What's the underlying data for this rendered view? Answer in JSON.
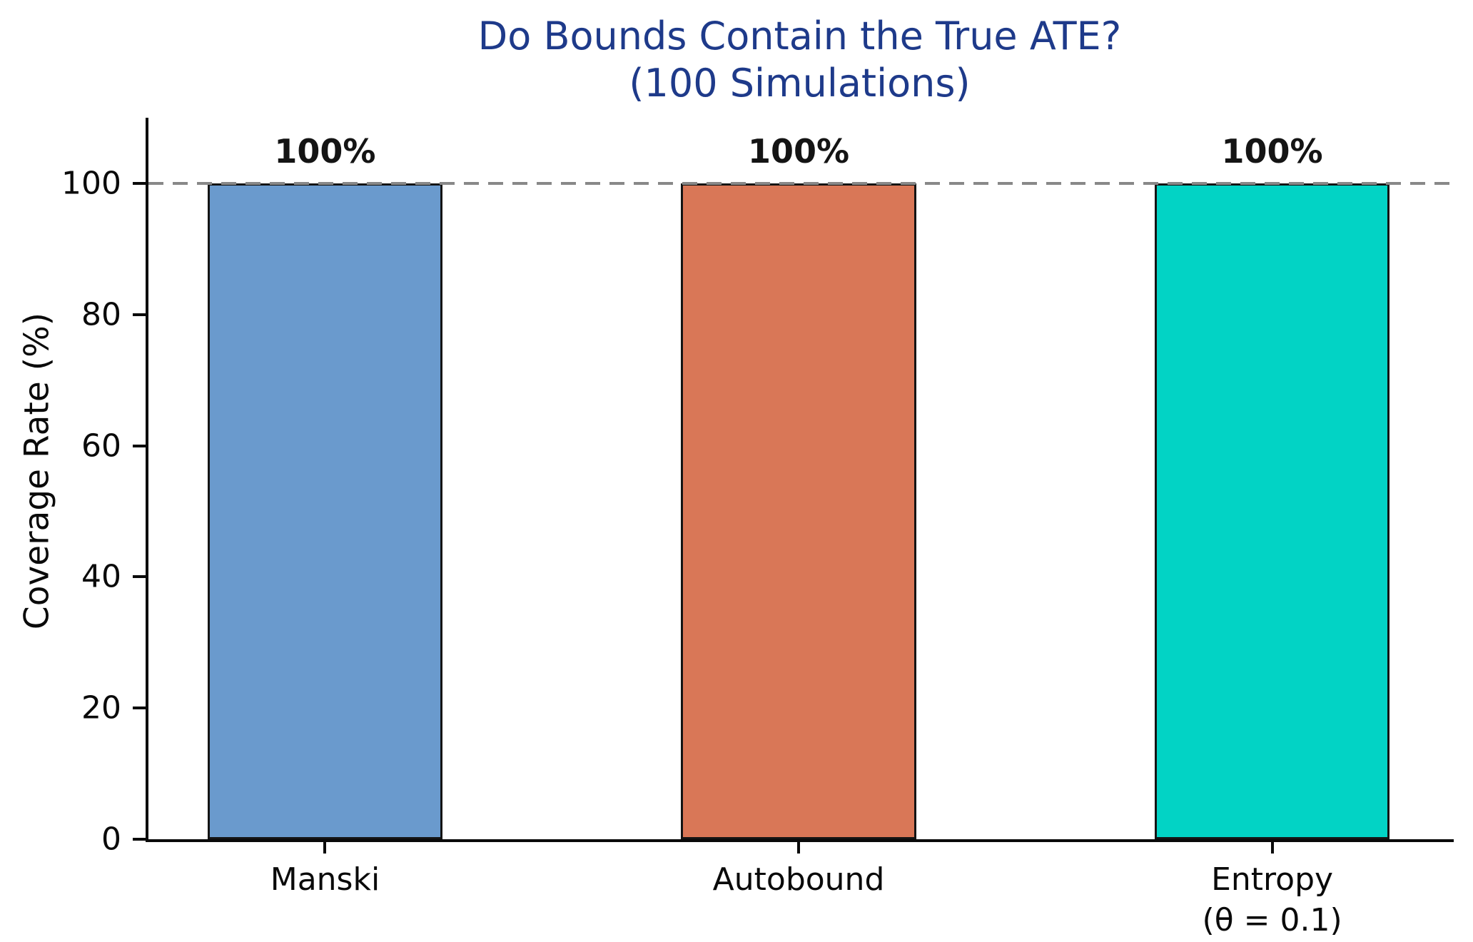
{
  "chart_data": {
    "type": "bar",
    "title": "Do Bounds Contain the True ATE?",
    "subtitle": "(100 Simulations)",
    "title_color": "#1e3a8a",
    "ylabel": "Coverage Rate (%)",
    "xlabel": "",
    "categories": [
      "Manski",
      "Autobound",
      "Entropy\n(θ = 0.1)"
    ],
    "values": [
      100,
      100,
      100
    ],
    "bar_labels": [
      "100%",
      "100%",
      "100%"
    ],
    "bar_colors": [
      "#6a9acd",
      "#d97757",
      "#02d3c5"
    ],
    "bar_edge_color": "#141414",
    "ylim": [
      0,
      110
    ],
    "yticks": [
      0,
      20,
      40,
      60,
      80,
      100
    ],
    "grid": "off",
    "legend": "none",
    "reference_line": {
      "y": 100,
      "style": "dashed",
      "color": "#888888"
    }
  }
}
